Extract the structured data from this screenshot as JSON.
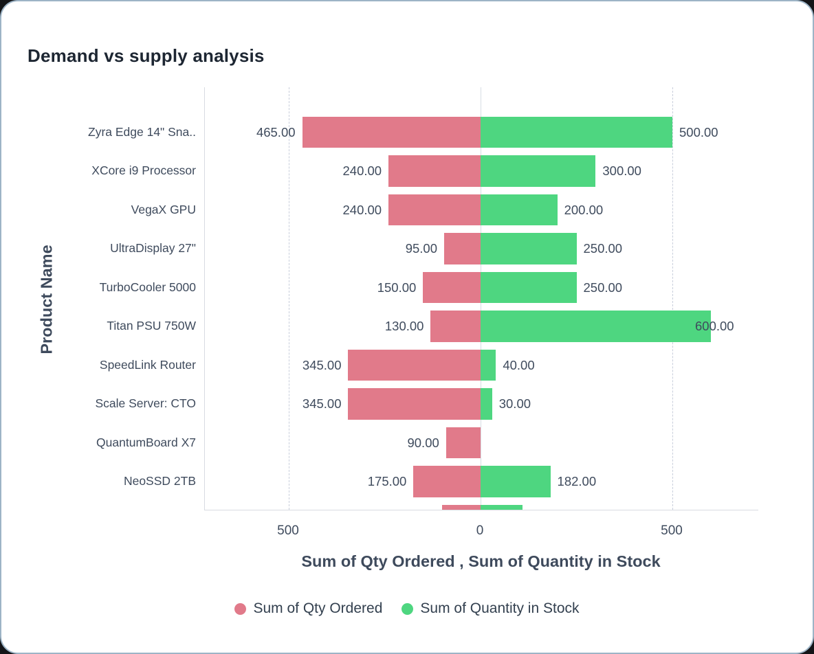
{
  "title": "Demand vs supply analysis",
  "colors": {
    "qty_ordered": "#e17a8a",
    "qty_in_stock": "#4ed680",
    "text_slate": "#3f4b5d",
    "title_dark": "#1d2632",
    "gridline": "#c8cedb",
    "axis_line": "#d7dbe1",
    "card_border": "#9db4c6"
  },
  "chart_data": {
    "type": "bar",
    "orientation": "horizontal-diverging",
    "title": "Demand vs supply analysis",
    "xlabel": "Sum of Qty Ordered , Sum of Quantity in Stock",
    "ylabel": "Product Name",
    "x_ticks": [
      "500",
      "0",
      "500"
    ],
    "x_tick_values": [
      -500,
      0,
      500
    ],
    "xlim": [
      -720,
      720
    ],
    "grid": "dashed vertical at -500 and 500, solid at 0",
    "legend_position": "bottom-center",
    "legend": [
      {
        "name": "Sum of Qty Ordered",
        "color": "#e17a8a"
      },
      {
        "name": "Sum of Quantity in Stock",
        "color": "#4ed680"
      }
    ],
    "categories": [
      "Zyra Edge 14\" Sna..",
      "XCore i9 Processor",
      "VegaX GPU",
      "UltraDisplay 27\"",
      "TurboCooler 5000",
      "Titan PSU 750W",
      "SpeedLink Router",
      "Scale Server: CTO",
      "QuantumBoard X7",
      "NeoSSD 2TB"
    ],
    "series": [
      {
        "name": "Sum of Qty Ordered",
        "direction": "left",
        "values": [
          465,
          240,
          240,
          95,
          150,
          130,
          345,
          345,
          90,
          175
        ],
        "labels": [
          "465.00",
          "240.00",
          "240.00",
          "95.00",
          "150.00",
          "130.00",
          "345.00",
          "345.00",
          "90.00",
          "175.00"
        ]
      },
      {
        "name": "Sum of Quantity in Stock",
        "direction": "right",
        "values": [
          500,
          300,
          200,
          250,
          250,
          600,
          40,
          30,
          0,
          182
        ],
        "labels": [
          "500.00",
          "300.00",
          "200.00",
          "250.00",
          "250.00",
          "600.00",
          "40.00",
          "30.00",
          "",
          "182.00"
        ]
      }
    ],
    "clipped_row": {
      "qty_ordered": 100,
      "qty_in_stock": 110,
      "note": "partially visible row cut off at bottom edge of plot"
    }
  }
}
